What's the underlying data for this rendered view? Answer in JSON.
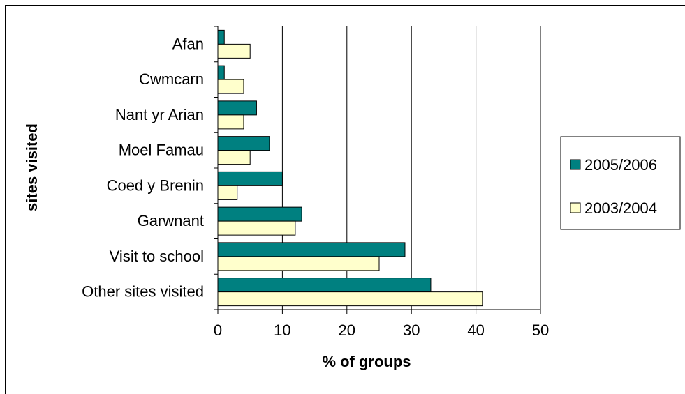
{
  "chart_data": {
    "type": "bar",
    "orientation": "horizontal",
    "title": "",
    "xlabel": "% of groups",
    "ylabel": "sites visited",
    "xlim": [
      0,
      50
    ],
    "xticks": [
      0,
      10,
      20,
      30,
      40,
      50
    ],
    "grid": "vertical major gridlines on",
    "legend_position": "right",
    "categories": [
      "Afan",
      "Cwmcarn",
      "Nant yr Arian",
      "Moel Famau",
      "Coed y Brenin",
      "Garwnant",
      "Visit to school",
      "Other sites visited"
    ],
    "series": [
      {
        "name": "2005/2006",
        "color": "#008080",
        "values": [
          1,
          1,
          6,
          8,
          10,
          13,
          29,
          33
        ]
      },
      {
        "name": "2003/2004",
        "color": "#FFFFCC",
        "values": [
          5,
          4,
          4,
          5,
          3,
          12,
          25,
          41
        ]
      }
    ]
  }
}
